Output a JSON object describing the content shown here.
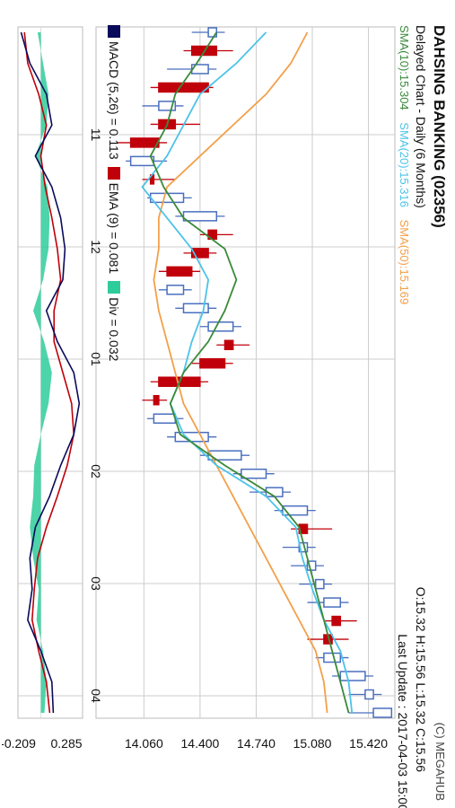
{
  "header": {
    "title": "DAHSING BANKING (02356)",
    "subtitle": "Delayed Chart - Daily (6 Months)",
    "ohlc": "O:15.32  H:15.56  L:15.32  C:15.56",
    "last_update": "Last Update : 2017-04-03 15:00",
    "copyright": "(C) MEGAHUB"
  },
  "colors": {
    "up": "#4a6fbf",
    "down": "#c0000a",
    "sma10": "#3a8a3a",
    "sma20": "#4cc3e8",
    "sma50": "#f3a04a",
    "macd": "#0a0a5a",
    "ema": "#c0000a",
    "div": "#2ecc9a"
  },
  "chart_data": [
    {
      "type": "candlestick",
      "title": "DAHSING BANKING (02356)",
      "subtitle": "Delayed Chart - Daily (6 Months)",
      "x_tick_labels": [
        "11",
        "12",
        "01",
        "02",
        "03",
        "04"
      ],
      "y_tick_labels": [
        "14.060",
        "14.400",
        "14.740",
        "15.080",
        "15.420"
      ],
      "y_ticks": [
        14.06,
        14.4,
        14.74,
        15.08,
        15.42
      ],
      "ylim": [
        13.77,
        15.58
      ],
      "grid": true,
      "ohlc_last": {
        "open": 15.32,
        "high": 15.56,
        "low": 15.32,
        "close": 15.56
      },
      "series": [
        {
          "name": "SMA(10):15.304",
          "label": "SMA(10)",
          "last": 15.304
        },
        {
          "name": "SMA(20):15.316",
          "label": "SMA(20)",
          "last": 15.316
        },
        {
          "name": "SMA(50):15.169",
          "label": "SMA(50)",
          "last": 15.169
        }
      ],
      "sma10_values": [
        14.5,
        14.38,
        14.25,
        14.2,
        14.1,
        14.18,
        14.3,
        14.55,
        14.62,
        14.55,
        14.45,
        14.3,
        14.22,
        14.28,
        14.55,
        14.85,
        15.0,
        15.05,
        15.1,
        15.15,
        15.2,
        15.25,
        15.3
      ],
      "sma20_values": [
        14.8,
        14.62,
        14.4,
        14.3,
        14.2,
        14.05,
        14.2,
        14.35,
        14.45,
        14.42,
        14.35,
        14.3,
        14.22,
        14.3,
        14.5,
        14.8,
        14.98,
        15.02,
        15.08,
        15.15,
        15.25,
        15.3,
        15.32
      ],
      "sma50_values": [
        15.05,
        14.95,
        14.8,
        14.6,
        14.4,
        14.2,
        14.15,
        14.15,
        14.12,
        14.15,
        14.2,
        14.25,
        14.3,
        14.4,
        14.5,
        14.6,
        14.7,
        14.8,
        14.9,
        15.0,
        15.1,
        15.15,
        15.17
      ],
      "candles": [
        [
          14.45,
          14.55,
          14.35,
          14.5
        ],
        [
          14.5,
          14.6,
          14.3,
          14.35
        ],
        [
          14.35,
          14.5,
          14.2,
          14.45
        ],
        [
          14.45,
          14.48,
          14.1,
          14.15
        ],
        [
          14.15,
          14.3,
          14.05,
          14.25
        ],
        [
          14.25,
          14.4,
          14.1,
          14.15
        ],
        [
          14.15,
          14.2,
          13.9,
          13.98
        ],
        [
          13.98,
          14.2,
          13.95,
          14.12
        ],
        [
          14.12,
          14.25,
          14.05,
          14.1
        ],
        [
          14.1,
          14.35,
          14.08,
          14.3
        ],
        [
          14.3,
          14.55,
          14.25,
          14.5
        ],
        [
          14.5,
          14.6,
          14.4,
          14.45
        ],
        [
          14.45,
          14.5,
          14.3,
          14.35
        ],
        [
          14.35,
          14.4,
          14.15,
          14.2
        ],
        [
          14.2,
          14.35,
          14.15,
          14.3
        ],
        [
          14.3,
          14.5,
          14.25,
          14.45
        ],
        [
          14.45,
          14.65,
          14.4,
          14.6
        ],
        [
          14.6,
          14.7,
          14.5,
          14.55
        ],
        [
          14.55,
          14.6,
          14.35,
          14.4
        ],
        [
          14.4,
          14.45,
          14.1,
          14.15
        ],
        [
          14.15,
          14.2,
          14.05,
          14.12
        ],
        [
          14.12,
          14.3,
          14.08,
          14.25
        ],
        [
          14.25,
          14.5,
          14.2,
          14.45
        ],
        [
          14.45,
          14.7,
          14.4,
          14.65
        ],
        [
          14.65,
          14.85,
          14.6,
          14.8
        ],
        [
          14.8,
          14.95,
          14.7,
          14.9
        ],
        [
          14.9,
          15.1,
          14.85,
          15.05
        ],
        [
          15.05,
          15.2,
          14.95,
          15.0
        ],
        [
          15.0,
          15.1,
          14.9,
          15.05
        ],
        [
          15.05,
          15.15,
          14.95,
          15.1
        ],
        [
          15.1,
          15.2,
          15.0,
          15.15
        ],
        [
          15.15,
          15.3,
          15.05,
          15.25
        ],
        [
          15.25,
          15.35,
          15.15,
          15.2
        ],
        [
          15.2,
          15.3,
          15.05,
          15.15
        ],
        [
          15.15,
          15.3,
          15.1,
          15.25
        ],
        [
          15.25,
          15.45,
          15.2,
          15.4
        ],
        [
          15.4,
          15.5,
          15.3,
          15.45
        ],
        [
          15.45,
          15.56,
          15.3,
          15.56
        ]
      ]
    },
    {
      "type": "line",
      "title": "",
      "y_tick_labels": [
        "0.285",
        "-0.209"
      ],
      "y_ticks": [
        0.285,
        -0.209
      ],
      "ylim": [
        -0.209,
        0.38
      ],
      "legend": [
        {
          "name": "MACD (5,26) = 0.113",
          "color_key": "macd"
        },
        {
          "name": "EMA (9) = 0.081",
          "color_key": "ema"
        },
        {
          "name": "Div = 0.032",
          "color_key": "div"
        }
      ],
      "macd_values": [
        -0.18,
        -0.1,
        0.05,
        0.1,
        -0.05,
        0.1,
        0.18,
        0.22,
        0.2,
        0.05,
        0.15,
        0.3,
        0.35,
        0.3,
        0.18,
        0.08,
        -0.05,
        -0.1,
        -0.08,
        -0.12,
        0.0,
        0.1,
        0.113
      ],
      "ema_values": [
        -0.15,
        -0.12,
        -0.02,
        0.05,
        0.0,
        0.04,
        0.1,
        0.15,
        0.18,
        0.12,
        0.12,
        0.2,
        0.28,
        0.3,
        0.24,
        0.15,
        0.05,
        -0.03,
        -0.06,
        -0.08,
        -0.02,
        0.05,
        0.081
      ],
      "div_values": [
        -0.03,
        0.02,
        0.07,
        0.05,
        -0.05,
        0.06,
        0.08,
        0.07,
        0.02,
        -0.07,
        0.03,
        0.1,
        0.07,
        0.0,
        -0.06,
        -0.07,
        -0.1,
        -0.07,
        -0.02,
        -0.04,
        0.02,
        0.05,
        0.032
      ]
    }
  ]
}
